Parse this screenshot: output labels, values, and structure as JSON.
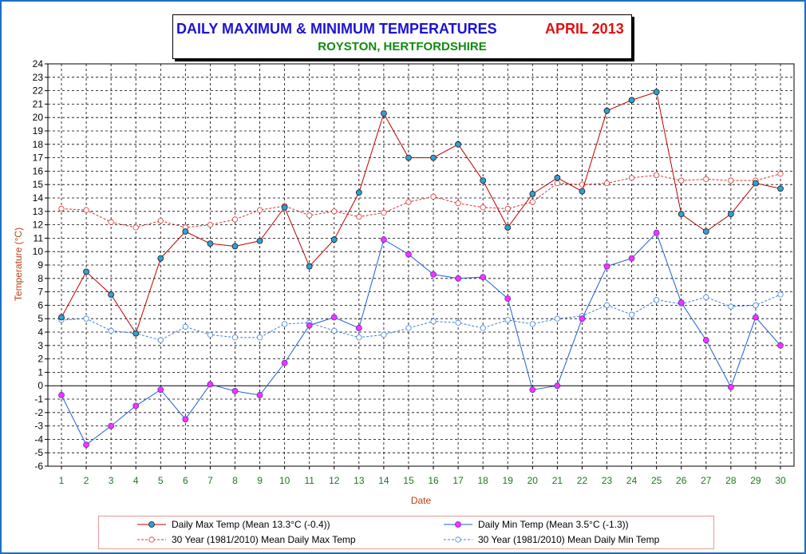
{
  "title": {
    "main": "DAILY MAXIMUM &  MINIMUM  TEMPERATURES",
    "month": "APRIL 2013",
    "subtitle": "ROYSTON, HERTFORDSHIRE"
  },
  "colors": {
    "frame": "#1e6fc4",
    "title_main": "#1c12d6",
    "title_month": "#e01010",
    "subtitle": "#118a11",
    "max_line": "#c00000",
    "min_line": "#1f5fcf",
    "mean_max": "#e03030",
    "mean_min": "#3f7fe0",
    "max_marker": "#2fa0d8",
    "min_marker": "#ff30ff",
    "axis_label": "#b84010",
    "tick_label": "#1a7a1a",
    "ytick_label": "#000000"
  },
  "chart_data": {
    "type": "line",
    "xlabel": "Date",
    "ylabel": "Temperature (°C)",
    "x": [
      1,
      2,
      3,
      4,
      5,
      6,
      7,
      8,
      9,
      10,
      11,
      12,
      13,
      14,
      15,
      16,
      17,
      18,
      19,
      20,
      21,
      22,
      23,
      24,
      25,
      26,
      27,
      28,
      29,
      30
    ],
    "ylim": [
      -6,
      24
    ],
    "yticks": [
      -6,
      -5,
      -4,
      -3,
      -2,
      -1,
      0,
      1,
      2,
      3,
      4,
      5,
      6,
      7,
      8,
      9,
      10,
      11,
      12,
      13,
      14,
      15,
      16,
      17,
      18,
      19,
      20,
      21,
      22,
      23,
      24
    ],
    "grid": true,
    "series": [
      {
        "name": "Daily Max Temp (Mean 13.3°C (-0.4))",
        "style": "solid",
        "values": [
          5.1,
          8.5,
          6.8,
          3.9,
          9.5,
          11.5,
          10.6,
          10.4,
          10.8,
          13.3,
          8.9,
          10.9,
          14.4,
          20.3,
          17.0,
          17.0,
          18.0,
          15.3,
          11.8,
          14.3,
          15.5,
          14.5,
          20.5,
          21.3,
          21.9,
          12.8,
          11.5,
          12.8,
          15.1,
          14.7
        ]
      },
      {
        "name": "Daily Min Temp (Mean 3.5°C (-1.3))",
        "style": "solid",
        "values": [
          -0.7,
          -4.4,
          -3.0,
          -1.5,
          -0.3,
          -2.5,
          0.1,
          -0.4,
          -0.7,
          1.7,
          4.5,
          5.1,
          4.3,
          10.9,
          9.8,
          8.3,
          8.0,
          8.1,
          6.5,
          -0.3,
          0.0,
          5.0,
          8.9,
          9.5,
          11.4,
          6.2,
          3.4,
          -0.1,
          5.1,
          3.0
        ]
      },
      {
        "name": "30 Year (1981/2010) Mean Daily Max Temp",
        "style": "dashed",
        "values": [
          13.2,
          13.1,
          12.2,
          11.8,
          12.3,
          11.8,
          12.0,
          12.4,
          13.1,
          13.4,
          12.7,
          13.0,
          12.6,
          12.9,
          13.7,
          14.1,
          13.6,
          13.3,
          13.2,
          13.7,
          15.1,
          15.0,
          15.1,
          15.5,
          15.7,
          15.3,
          15.4,
          15.3,
          15.3,
          15.8
        ]
      },
      {
        "name": "30 Year (1981/2010) Mean Daily Min Temp",
        "style": "dashed",
        "values": [
          4.9,
          5.0,
          4.1,
          3.9,
          3.4,
          4.4,
          3.8,
          3.6,
          3.6,
          4.6,
          4.7,
          4.1,
          3.6,
          3.8,
          4.3,
          4.8,
          4.7,
          4.3,
          4.9,
          4.6,
          5.0,
          5.2,
          6.0,
          5.3,
          6.4,
          6.1,
          6.6,
          5.9,
          6.0,
          6.8
        ]
      }
    ]
  }
}
